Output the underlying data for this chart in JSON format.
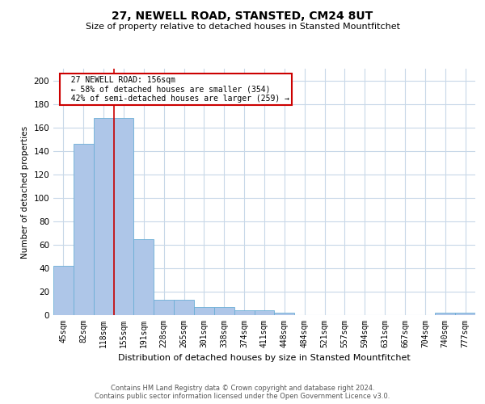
{
  "title1": "27, NEWELL ROAD, STANSTED, CM24 8UT",
  "title2": "Size of property relative to detached houses in Stansted Mountfitchet",
  "xlabel": "Distribution of detached houses by size in Stansted Mountfitchet",
  "ylabel": "Number of detached properties",
  "footer1": "Contains HM Land Registry data © Crown copyright and database right 2024.",
  "footer2": "Contains public sector information licensed under the Open Government Licence v3.0.",
  "annotation_line1": "  27 NEWELL ROAD: 156sqm",
  "annotation_line2": "  ← 58% of detached houses are smaller (354)",
  "annotation_line3": "  42% of semi-detached houses are larger (259) →",
  "categories": [
    "45sqm",
    "82sqm",
    "118sqm",
    "155sqm",
    "191sqm",
    "228sqm",
    "265sqm",
    "301sqm",
    "338sqm",
    "374sqm",
    "411sqm",
    "448sqm",
    "484sqm",
    "521sqm",
    "557sqm",
    "594sqm",
    "631sqm",
    "667sqm",
    "704sqm",
    "740sqm",
    "777sqm"
  ],
  "values": [
    42,
    146,
    168,
    168,
    65,
    13,
    13,
    7,
    7,
    4,
    4,
    2,
    0,
    0,
    0,
    0,
    0,
    0,
    0,
    2,
    2
  ],
  "bar_color": "#aec6e8",
  "bar_edge_color": "#6baed6",
  "vline_color": "#cc0000",
  "annotation_box_color": "#cc0000",
  "background_color": "#ffffff",
  "grid_color": "#c8d8e8",
  "ylim": [
    0,
    210
  ],
  "yticks": [
    0,
    20,
    40,
    60,
    80,
    100,
    120,
    140,
    160,
    180,
    200
  ]
}
